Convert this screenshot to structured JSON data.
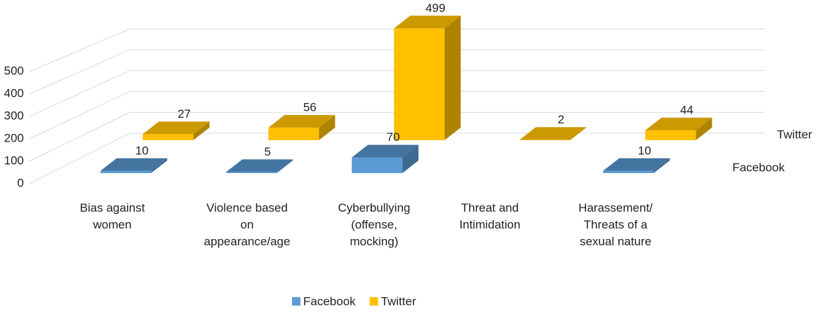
{
  "chart_data": {
    "type": "bar3d",
    "categories": [
      "Bias against women",
      "Violence based on appearance/age",
      "Cyberbullying (offense, mocking)",
      "Threat and Intimidation",
      "Harassement/ Threats of a sexual nature"
    ],
    "series": [
      {
        "name": "Facebook",
        "color": "#5b9bd5",
        "values": [
          10,
          5,
          70,
          null,
          10
        ]
      },
      {
        "name": "Twitter",
        "color": "#ffc000",
        "values": [
          27,
          56,
          499,
          2,
          44
        ]
      }
    ],
    "ylim": [
      0,
      500
    ],
    "yticks": [
      0,
      100,
      200,
      300,
      400,
      500
    ],
    "grid": true,
    "legend": "bottom"
  }
}
